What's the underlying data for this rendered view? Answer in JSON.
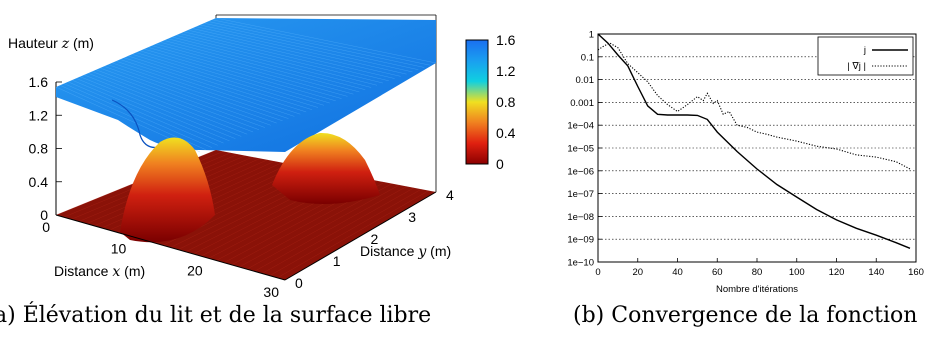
{
  "captions": {
    "a": "a) Élévation du lit et de la surface libre",
    "b": "(b) Convergence de la fonction coû"
  },
  "chart_data": [
    {
      "type": "surface3d",
      "title": "",
      "zlabel_prefix": "Hauteur ",
      "zlabel_var": "z",
      "zlabel_suffix": " (m)",
      "xlabel_prefix": "Distance ",
      "xlabel_var": "x",
      "xlabel_suffix": " (m)",
      "ylabel_prefix": "Distance ",
      "ylabel_var": "y",
      "ylabel_suffix": " (m)",
      "z_ticks": [
        "0",
        "0.4",
        "0.8",
        "1.2",
        "1.6"
      ],
      "x_ticks": [
        "0",
        "10",
        "20",
        "30"
      ],
      "y_ticks": [
        "0",
        "1",
        "2",
        "3",
        "4"
      ],
      "colorbar_ticks": [
        "0",
        "0.4",
        "0.8",
        "1.2",
        "1.6"
      ],
      "colorbar_colors": [
        "#8b0000",
        "#e02010",
        "#f08020",
        "#f0e020",
        "#10d0e0",
        "#1a9ff0",
        "#1a6ff0"
      ],
      "zlim": [
        0,
        1.6
      ],
      "xlim": [
        0,
        30
      ],
      "ylim": [
        0,
        4
      ],
      "surfaces": [
        {
          "name": "surface libre",
          "approx_level": 1.5,
          "color": "#1e8cf0"
        },
        {
          "name": "lit",
          "base_level": 0,
          "bumps": [
            {
              "x": 11,
              "y": 1.2,
              "height": 0.8
            },
            {
              "x": 27,
              "y": 3.0,
              "height": 0.8
            }
          ],
          "color_low": "#8b0000",
          "color_high": "#f0e020"
        }
      ]
    },
    {
      "type": "line",
      "title": "",
      "xlabel": "Nombre d'itérations",
      "ylabel": "",
      "xlim": [
        0,
        160
      ],
      "ylim_log10": [
        -10,
        0
      ],
      "yscale": "log",
      "grid_y": true,
      "legend_position": "top-right",
      "x_ticks": [
        "0",
        "20",
        "40",
        "60",
        "80",
        "100",
        "120",
        "140",
        "160"
      ],
      "y_ticks": [
        "1",
        "0.1",
        "0.01",
        "0.001",
        "1e−04",
        "1e−05",
        "1e−06",
        "1e−07",
        "1e−08",
        "1e−09",
        "1e−10"
      ],
      "series": [
        {
          "name": "j",
          "style": "solid",
          "x": [
            0,
            5,
            10,
            15,
            20,
            25,
            30,
            35,
            40,
            45,
            50,
            55,
            60,
            70,
            80,
            90,
            100,
            110,
            120,
            130,
            140,
            150,
            157
          ],
          "y": [
            1,
            0.4,
            0.12,
            0.04,
            0.005,
            0.0007,
            0.0003,
            0.00028,
            0.00028,
            0.00028,
            0.00027,
            0.00018,
            5e-05,
            7e-06,
            1.2e-06,
            2.5e-07,
            7e-08,
            2e-08,
            7e-09,
            3e-09,
            1.5e-09,
            7e-10,
            4e-10
          ]
        },
        {
          "name": "| ∇j |",
          "style": "dotted",
          "x": [
            0,
            3,
            6,
            10,
            15,
            20,
            25,
            30,
            35,
            40,
            45,
            50,
            53,
            55,
            58,
            60,
            63,
            66,
            70,
            75,
            80,
            85,
            90,
            100,
            110,
            120,
            130,
            140,
            150,
            157
          ],
          "y": [
            0.2,
            0.3,
            0.4,
            0.25,
            0.05,
            0.02,
            0.008,
            0.002,
            0.0008,
            0.0004,
            0.0008,
            0.0018,
            0.0012,
            0.0025,
            0.0009,
            0.0012,
            0.0003,
            0.0004,
            0.0001,
            8e-05,
            5e-05,
            4e-05,
            3e-05,
            2e-05,
            1.2e-05,
            9e-06,
            5e-06,
            4e-06,
            2.5e-06,
            1.2e-06
          ]
        }
      ]
    }
  ]
}
